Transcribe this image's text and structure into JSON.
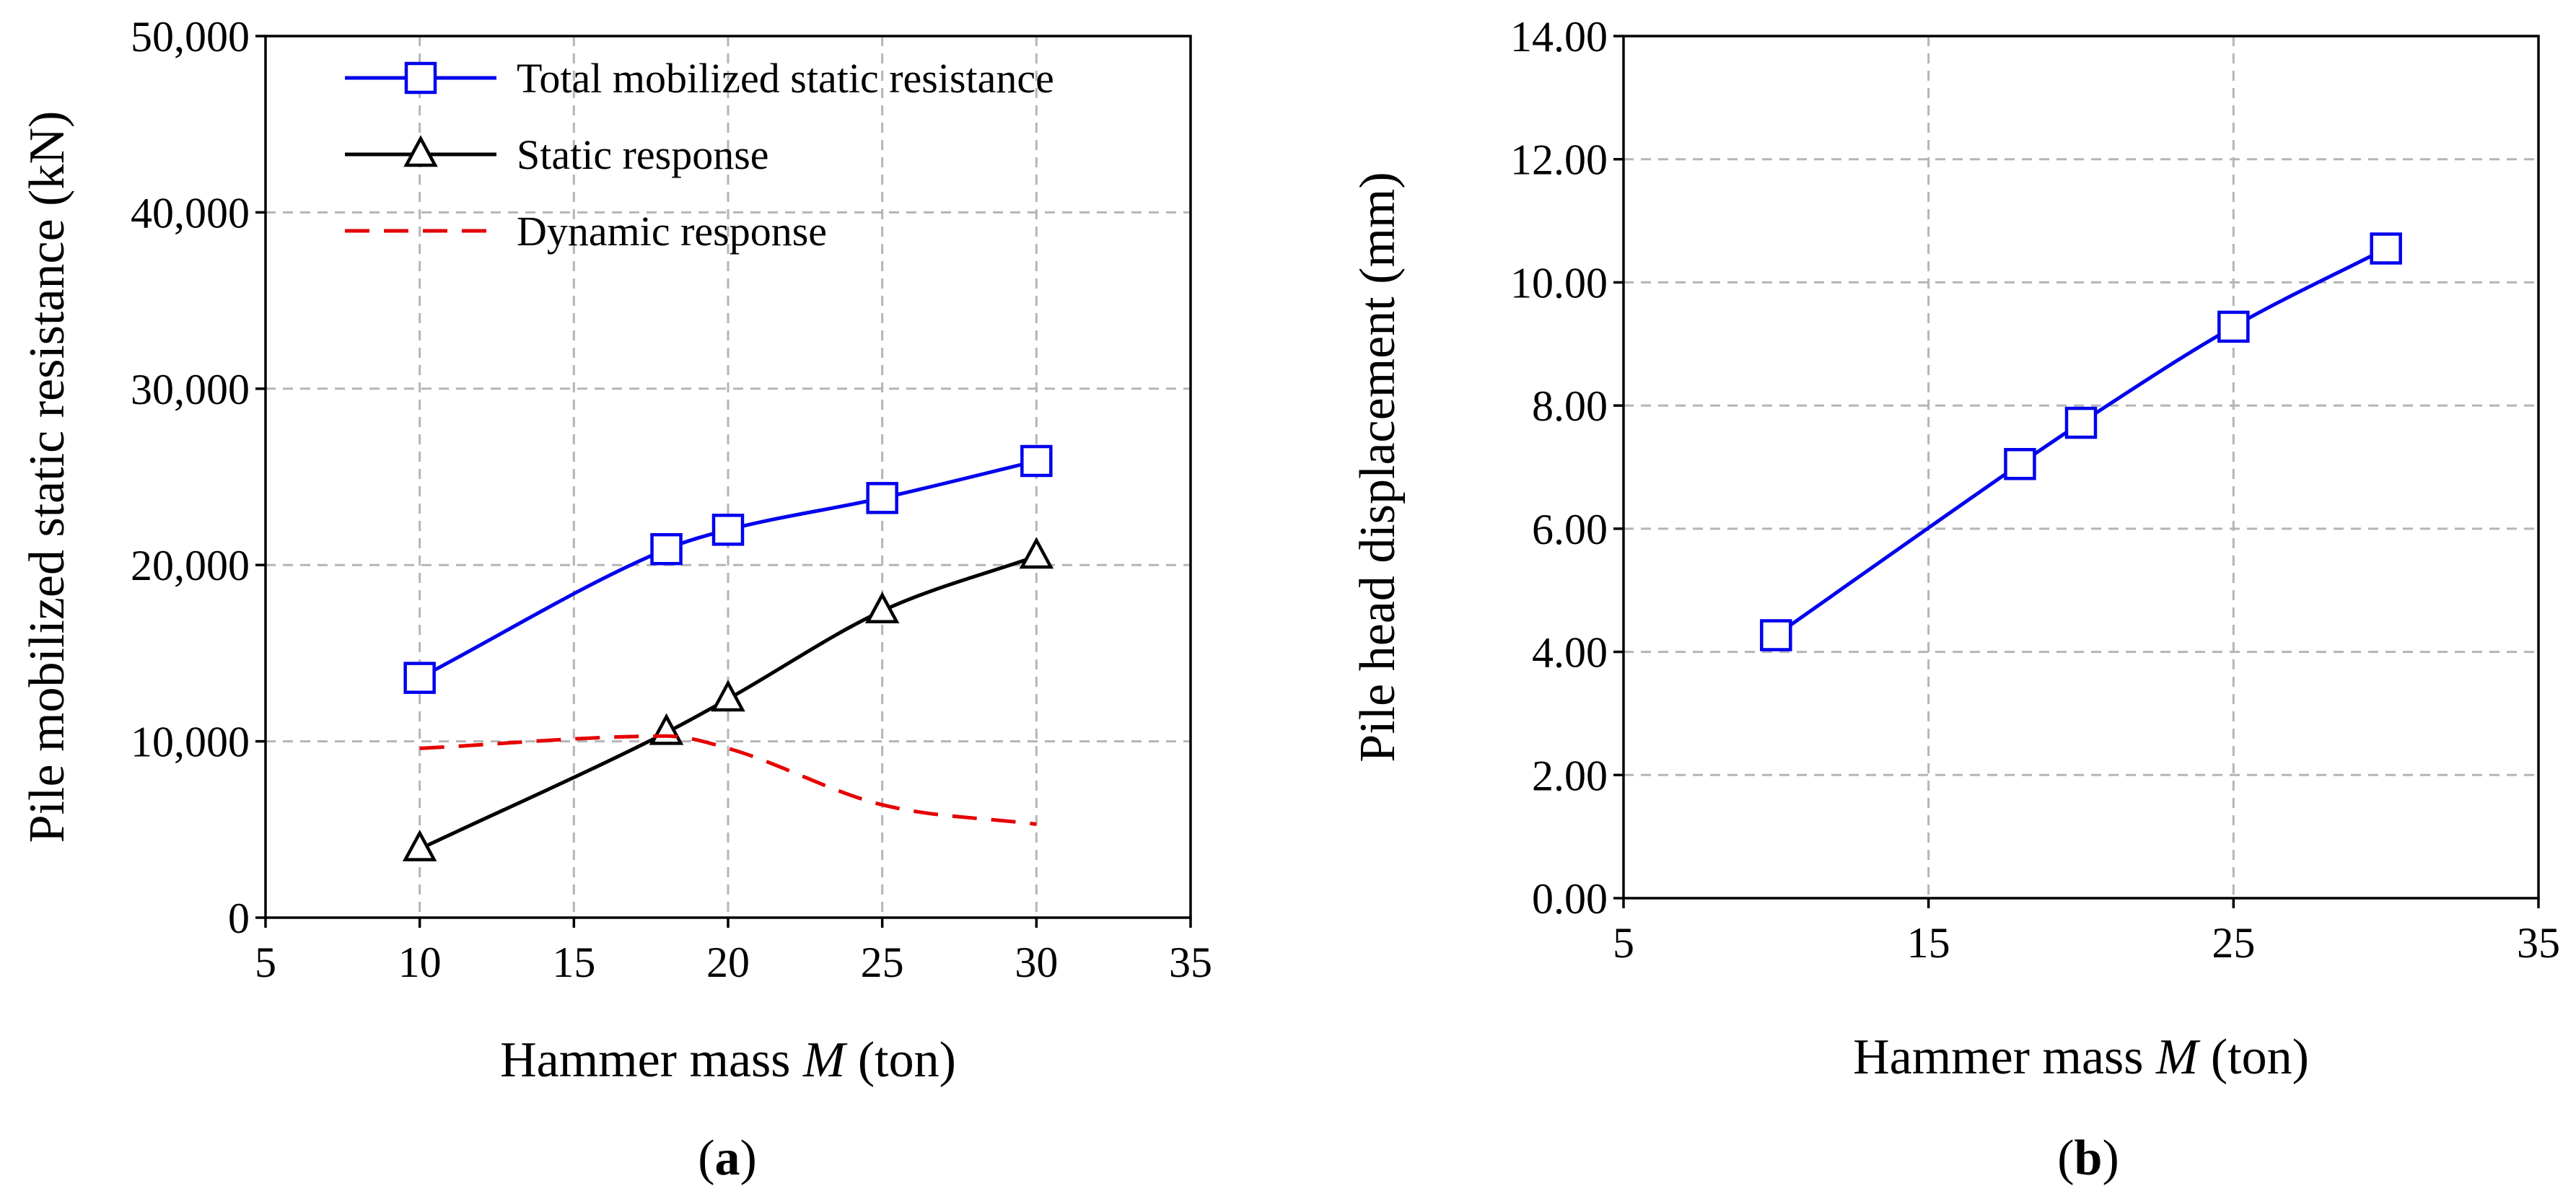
{
  "chart_data": [
    {
      "type": "line",
      "panel_label": "a",
      "xlabel_prefix": "Hammer mass ",
      "xlabel_var": "M",
      "xlabel_suffix": " (ton)",
      "ylabel": "Pile mobilized static resistance (kN)",
      "xlim": [
        5,
        35
      ],
      "ylim": [
        0,
        50000
      ],
      "xticks": [
        5,
        10,
        15,
        20,
        25,
        30,
        35
      ],
      "xtick_labels": [
        "5",
        "10",
        "15",
        "20",
        "25",
        "30",
        "35"
      ],
      "yticks": [
        0,
        10000,
        20000,
        30000,
        40000,
        50000
      ],
      "ytick_labels": [
        "0",
        "10,000",
        "20,000",
        "30,000",
        "40,000",
        "50,000"
      ],
      "grid": true,
      "legend_position": "top-left",
      "series": [
        {
          "name": "Total mobilized static resistance",
          "color": "#0000ee",
          "line": "solid",
          "marker": "square",
          "x": [
            10,
            18,
            20,
            25,
            30
          ],
          "y": [
            13600,
            20900,
            22000,
            23800,
            25900
          ]
        },
        {
          "name": "Static response",
          "color": "#000000",
          "line": "solid",
          "marker": "triangle",
          "x": [
            10,
            18,
            20,
            25,
            30
          ],
          "y": [
            3900,
            10500,
            12400,
            17400,
            20500
          ]
        },
        {
          "name": "Dynamic response",
          "color": "#e60000",
          "line": "dashed",
          "marker": "none",
          "x": [
            10,
            18,
            20,
            25,
            30
          ],
          "y": [
            9600,
            10300,
            9600,
            6400,
            5300
          ]
        }
      ]
    },
    {
      "type": "line",
      "panel_label": "b",
      "xlabel_prefix": "Hammer mass ",
      "xlabel_var": "M",
      "xlabel_suffix": " (ton)",
      "ylabel": "Pile head displacement (mm)",
      "xlim": [
        5,
        35
      ],
      "ylim": [
        0,
        14
      ],
      "xticks": [
        5,
        15,
        25,
        35
      ],
      "xtick_labels": [
        "5",
        "15",
        "25",
        "35"
      ],
      "yticks": [
        0,
        2,
        4,
        6,
        8,
        10,
        12,
        14
      ],
      "ytick_labels": [
        "0.00",
        "2.00",
        "4.00",
        "6.00",
        "8.00",
        "10.00",
        "12.00",
        "14.00"
      ],
      "grid": true,
      "series": [
        {
          "name": "Pile head displacement",
          "color": "#0000ee",
          "line": "solid",
          "marker": "square",
          "x": [
            10,
            18,
            20,
            25,
            30
          ],
          "y": [
            4.27,
            7.05,
            7.72,
            9.28,
            10.55
          ]
        }
      ]
    }
  ]
}
